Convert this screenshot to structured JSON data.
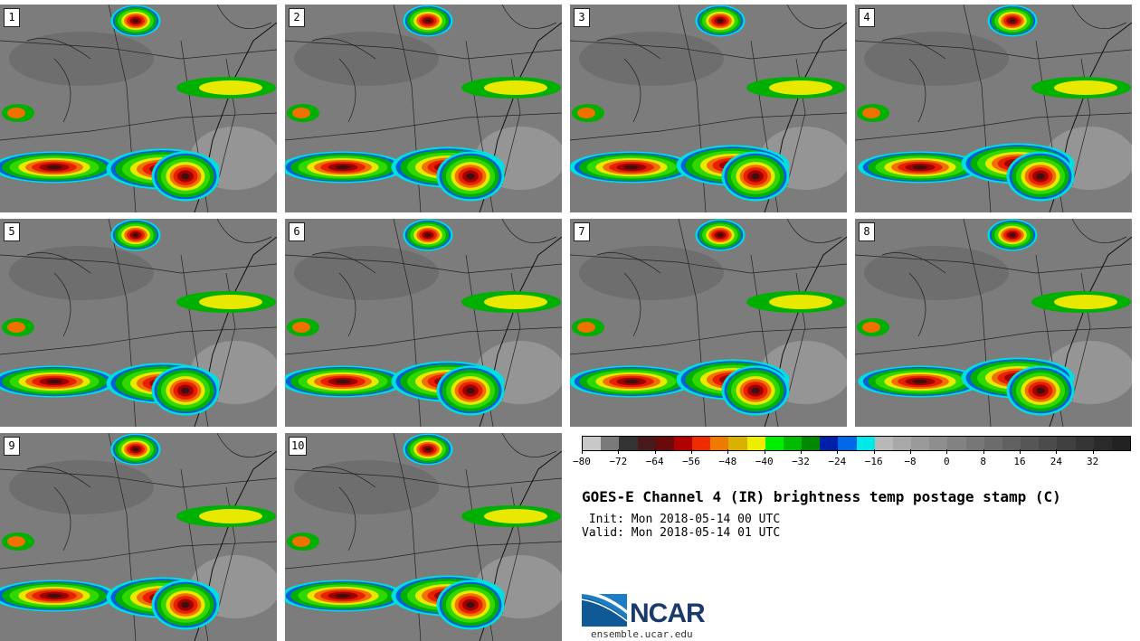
{
  "panels": [
    {
      "label": "1"
    },
    {
      "label": "2"
    },
    {
      "label": "3"
    },
    {
      "label": "4"
    },
    {
      "label": "5"
    },
    {
      "label": "6"
    },
    {
      "label": "7"
    },
    {
      "label": "8"
    },
    {
      "label": "9"
    },
    {
      "label": "10"
    }
  ],
  "colorbar": {
    "colors": [
      "#c8c8c8",
      "#7a7a7a",
      "#333333",
      "#4a1a1a",
      "#6a0a0a",
      "#b00000",
      "#ee2a00",
      "#ee7a00",
      "#d8b000",
      "#eeee00",
      "#00ee00",
      "#00bb00",
      "#008800",
      "#0020a8",
      "#0068e8",
      "#00e8e8",
      "#b8b8b8",
      "#a8a8a8",
      "#9a9a9a",
      "#8e8e8e",
      "#828282",
      "#777777",
      "#6c6c6c",
      "#616161",
      "#565656",
      "#4b4b4b",
      "#404040",
      "#353535",
      "#2a2a2a",
      "#222222"
    ],
    "ticks": [
      "−80",
      "−72",
      "−64",
      "−56",
      "−48",
      "−40",
      "−32",
      "−24",
      "−16",
      "−8",
      "0",
      "8",
      "16",
      "24",
      "32"
    ]
  },
  "title": "GOES-E Channel 4 (IR) brightness temp postage stamp (C)",
  "init": " Init: Mon 2018-05-14 00 UTC",
  "valid": "Valid: Mon 2018-05-14 01 UTC",
  "logo": {
    "text": "NCAR",
    "url_text": "ensemble.ucar.edu"
  }
}
